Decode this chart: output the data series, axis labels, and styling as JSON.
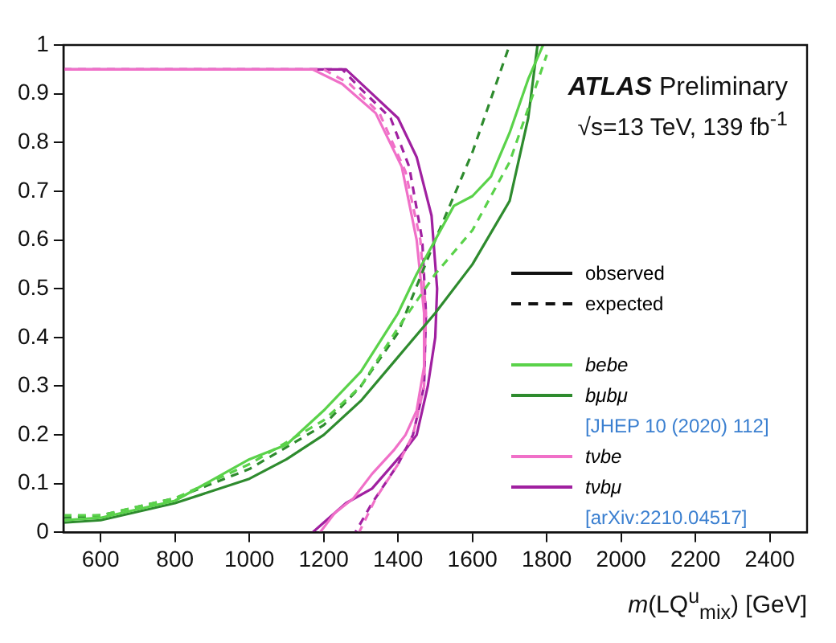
{
  "chart_data": {
    "type": "line",
    "xlabel": "m(LQ$^{u}$$_{mix}$) [GeV]",
    "xlim": [
      500,
      2500
    ],
    "xticks": [
      600,
      800,
      1000,
      1200,
      1400,
      1600,
      1800,
      2000,
      2200,
      2400
    ],
    "ylim": [
      0,
      1
    ],
    "yticks": [
      0,
      0.1,
      0.2,
      0.3,
      0.4,
      0.5,
      0.6,
      0.7,
      0.8,
      0.9,
      1
    ],
    "grid": false,
    "legend": "bottom right",
    "marker": "none",
    "series": [
      {
        "name": "bebe",
        "color": "#5ad24a",
        "line_style": "solid",
        "x": [
          500,
          600,
          800,
          1000,
          1100,
          1200,
          1300,
          1400,
          1450,
          1500,
          1550,
          1600,
          1650,
          1700,
          1750,
          1790
        ],
        "values": [
          0.025,
          0.03,
          0.065,
          0.15,
          0.18,
          0.25,
          0.33,
          0.45,
          0.53,
          0.6,
          0.67,
          0.69,
          0.73,
          0.82,
          0.93,
          1.0
        ]
      },
      {
        "color": "#5ad24a",
        "line_style": "dashed",
        "x": [
          500,
          600,
          800,
          1000,
          1200,
          1300,
          1400,
          1500,
          1600,
          1700,
          1800
        ],
        "values": [
          0.035,
          0.035,
          0.07,
          0.14,
          0.23,
          0.3,
          0.42,
          0.53,
          0.62,
          0.76,
          0.98
        ]
      },
      {
        "name": "bμbμ",
        "color": "#2e8b2e",
        "line_style": "solid",
        "x": [
          500,
          600,
          800,
          1000,
          1100,
          1200,
          1300,
          1400,
          1500,
          1600,
          1700,
          1750,
          1775
        ],
        "values": [
          0.02,
          0.025,
          0.06,
          0.11,
          0.15,
          0.2,
          0.27,
          0.36,
          0.45,
          0.55,
          0.68,
          0.85,
          1.0
        ]
      },
      {
        "color": "#2e8b2e",
        "line_style": "dashed",
        "x": [
          500,
          600,
          800,
          1000,
          1200,
          1300,
          1400,
          1500,
          1600,
          1700
        ],
        "values": [
          0.03,
          0.035,
          0.07,
          0.13,
          0.22,
          0.3,
          0.41,
          0.6,
          0.78,
          1.0
        ]
      },
      {
        "name": "tνbe",
        "color": "#f070c8",
        "line_style": "solid",
        "x": [
          500,
          1170,
          1250,
          1340,
          1410,
          1450,
          1470,
          1470,
          1450,
          1420,
          1390,
          1330,
          1280,
          1230,
          1190
        ],
        "values": [
          0.95,
          0.95,
          0.92,
          0.86,
          0.75,
          0.6,
          0.45,
          0.34,
          0.25,
          0.2,
          0.17,
          0.12,
          0.07,
          0.04,
          0
        ]
      },
      {
        "color": "#f070c8",
        "line_style": "dashed",
        "x": [
          500,
          1200,
          1270,
          1350,
          1420,
          1460,
          1475,
          1470,
          1440,
          1400,
          1340,
          1295
        ],
        "values": [
          0.95,
          0.95,
          0.92,
          0.86,
          0.74,
          0.6,
          0.45,
          0.3,
          0.2,
          0.14,
          0.07,
          0
        ]
      },
      {
        "name": "tνbμ",
        "color": "#a020a0",
        "line_style": "solid",
        "x": [
          500,
          1260,
          1330,
          1400,
          1450,
          1490,
          1505,
          1500,
          1480,
          1450,
          1410,
          1330,
          1260,
          1200,
          1170
        ],
        "values": [
          0.95,
          0.95,
          0.9,
          0.85,
          0.77,
          0.65,
          0.5,
          0.4,
          0.3,
          0.2,
          0.16,
          0.09,
          0.06,
          0.02,
          0
        ]
      },
      {
        "color": "#a020a0",
        "line_style": "dashed",
        "x": [
          500,
          1250,
          1300,
          1380,
          1430,
          1465,
          1475,
          1470,
          1440,
          1400,
          1330,
          1285
        ],
        "values": [
          0.95,
          0.95,
          0.91,
          0.85,
          0.75,
          0.6,
          0.45,
          0.3,
          0.2,
          0.14,
          0.06,
          0
        ]
      }
    ],
    "annotations": [
      "ATLAS Preliminary",
      "√s=13 TeV, 139 fb$^{-1}$",
      "observed",
      "expected",
      "[JHEP 10 (2020) 112]",
      "[arXiv:2210.04517]"
    ]
  }
}
